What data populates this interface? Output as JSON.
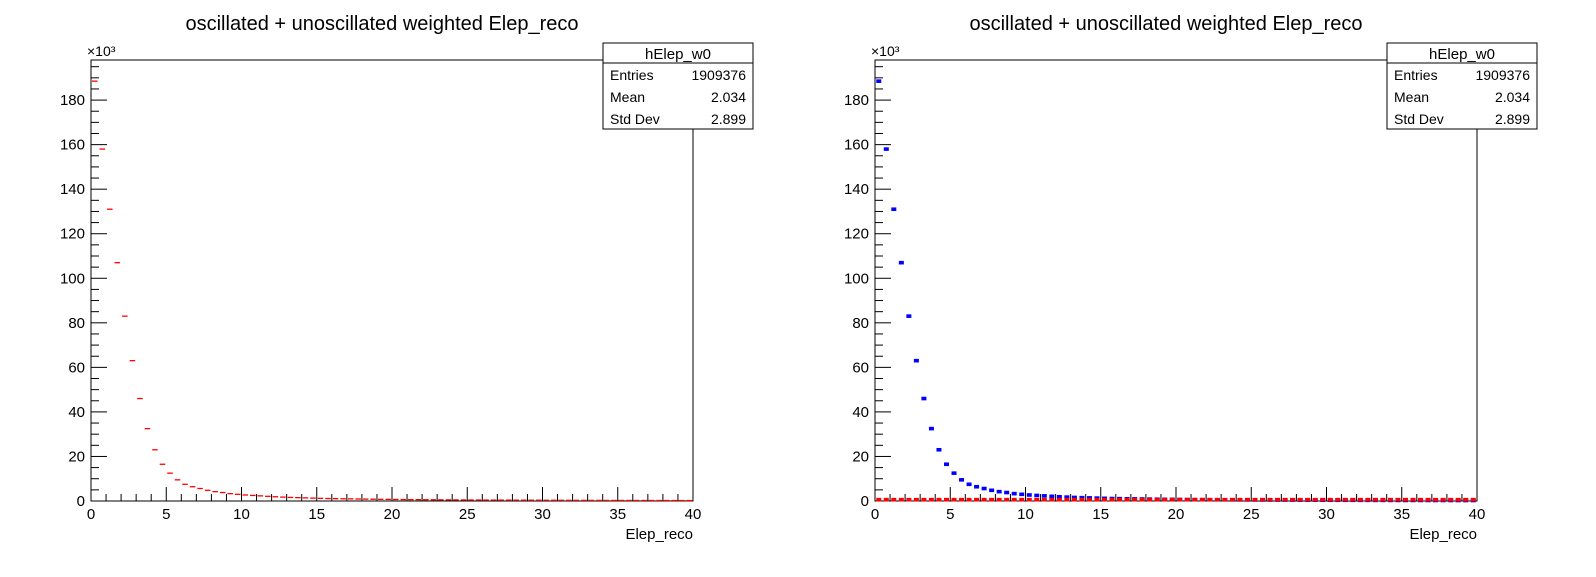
{
  "chart_data": [
    {
      "type": "scatter",
      "title": "oscillated + unoscillated weighted Elep_reco",
      "xlabel": "Elep_reco",
      "ylabel": "",
      "y_multiplier": "×10³",
      "xlim": [
        0,
        40
      ],
      "ylim": [
        0,
        198
      ],
      "x_ticks": [
        "0",
        "5",
        "10",
        "15",
        "20",
        "25",
        "30",
        "35",
        "40"
      ],
      "y_ticks": [
        "0",
        "20",
        "40",
        "60",
        "80",
        "100",
        "120",
        "140",
        "160",
        "180"
      ],
      "stats_box": {
        "name": "hElep_w0",
        "rows": [
          {
            "label": "Entries",
            "value": "1909376"
          },
          {
            "label": "Mean",
            "value": "2.034"
          },
          {
            "label": "Std Dev",
            "value": "2.899"
          }
        ]
      },
      "series": [
        {
          "color": "#ff0000",
          "marker": "hbar",
          "x": [
            0.25,
            0.75,
            1.25,
            1.75,
            2.25,
            2.75,
            3.25,
            3.75,
            4.25,
            4.75,
            5.25,
            5.75,
            6.25,
            6.75,
            7.25,
            7.75,
            8.25,
            8.75,
            9.25,
            9.75,
            10.25,
            10.75,
            11.25,
            11.75,
            12.25,
            12.75,
            13.25,
            13.75,
            14.25,
            14.75,
            15.25,
            15.75,
            16.25,
            16.75,
            17.25,
            17.75,
            18.25,
            18.75,
            19.25,
            19.75,
            20.25,
            20.75,
            21.25,
            21.75,
            22.25,
            22.75,
            23.25,
            23.75,
            24.25,
            24.75,
            25.25,
            25.75,
            26.25,
            26.75,
            27.25,
            27.75,
            28.25,
            28.75,
            29.25,
            29.75,
            30.25,
            30.75,
            31.25,
            31.75,
            32.25,
            32.75,
            33.25,
            33.75,
            34.25,
            34.75,
            35.25,
            35.75,
            36.25,
            36.75,
            37.25,
            37.75,
            38.25,
            38.75,
            39.25,
            39.75
          ],
          "values": [
            188.5,
            158,
            131,
            107,
            83,
            63,
            46,
            32.5,
            23,
            16.5,
            12.5,
            9.5,
            7.5,
            6.4,
            5.6,
            4.8,
            4.2,
            3.8,
            3.3,
            3.0,
            2.7,
            2.5,
            2.3,
            2.1,
            1.9,
            1.75,
            1.6,
            1.5,
            1.4,
            1.3,
            1.2,
            1.1,
            1.05,
            1.0,
            0.95,
            0.9,
            0.85,
            0.8,
            0.75,
            0.72,
            0.68,
            0.65,
            0.62,
            0.6,
            0.57,
            0.55,
            0.53,
            0.51,
            0.49,
            0.47,
            0.45,
            0.44,
            0.42,
            0.41,
            0.4,
            0.39,
            0.38,
            0.37,
            0.36,
            0.35,
            0.34,
            0.33,
            0.32,
            0.31,
            0.3,
            0.29,
            0.28,
            0.28,
            0.27,
            0.26,
            0.25,
            0.25,
            0.24,
            0.24,
            0.23,
            0.23,
            0.22,
            0.22,
            0.21,
            0.21
          ]
        }
      ]
    },
    {
      "type": "scatter",
      "title": "oscillated + unoscillated weighted Elep_reco",
      "xlabel": "Elep_reco",
      "ylabel": "",
      "y_multiplier": "×10³",
      "xlim": [
        0,
        40
      ],
      "ylim": [
        0,
        198
      ],
      "x_ticks": [
        "0",
        "5",
        "10",
        "15",
        "20",
        "25",
        "30",
        "35",
        "40"
      ],
      "y_ticks": [
        "0",
        "20",
        "40",
        "60",
        "80",
        "100",
        "120",
        "140",
        "160",
        "180"
      ],
      "stats_box": {
        "name": "hElep_w0",
        "rows": [
          {
            "label": "Entries",
            "value": "1909376"
          },
          {
            "label": "Mean",
            "value": "2.034"
          },
          {
            "label": "Std Dev",
            "value": "2.899"
          }
        ]
      },
      "series": [
        {
          "color": "#0000ff",
          "marker": "dot",
          "x": [
            0.25,
            0.75,
            1.25,
            1.75,
            2.25,
            2.75,
            3.25,
            3.75,
            4.25,
            4.75,
            5.25,
            5.75,
            6.25,
            6.75,
            7.25,
            7.75,
            8.25,
            8.75,
            9.25,
            9.75,
            10.25,
            10.75,
            11.25,
            11.75,
            12.25,
            12.75,
            13.25,
            13.75,
            14.25,
            14.75,
            15.25,
            15.75,
            16.25,
            16.75,
            17.25,
            17.75,
            18.25,
            18.75,
            19.25,
            19.75,
            20.25,
            20.75,
            21.25,
            21.75,
            22.25,
            22.75,
            23.25,
            23.75,
            24.25,
            24.75,
            25.25,
            25.75,
            26.25,
            26.75,
            27.25,
            27.75,
            28.25,
            28.75,
            29.25,
            29.75,
            30.25,
            30.75,
            31.25,
            31.75,
            32.25,
            32.75,
            33.25,
            33.75,
            34.25,
            34.75,
            35.25,
            35.75,
            36.25,
            36.75,
            37.25,
            37.75,
            38.25,
            38.75,
            39.25,
            39.75
          ],
          "values": [
            188.5,
            158,
            131,
            107,
            83,
            63,
            46,
            32.5,
            23,
            16.5,
            12.5,
            9.5,
            7.5,
            6.4,
            5.6,
            4.8,
            4.2,
            3.8,
            3.3,
            3.0,
            2.7,
            2.5,
            2.3,
            2.1,
            1.9,
            1.75,
            1.6,
            1.5,
            1.4,
            1.3,
            1.2,
            1.1,
            1.05,
            1.0,
            0.95,
            0.9,
            0.85,
            0.8,
            0.75,
            0.72,
            0.68,
            0.65,
            0.62,
            0.6,
            0.57,
            0.55,
            0.53,
            0.51,
            0.49,
            0.47,
            0.45,
            0.44,
            0.42,
            0.41,
            0.4,
            0.39,
            0.38,
            0.37,
            0.36,
            0.35,
            0.34,
            0.33,
            0.32,
            0.31,
            0.3,
            0.29,
            0.28,
            0.28,
            0.27,
            0.26,
            0.25,
            0.25,
            0.24,
            0.24,
            0.23,
            0.23,
            0.22,
            0.22,
            0.21,
            0.21
          ]
        },
        {
          "color": "#ff0000",
          "marker": "dot",
          "x": [
            0.25,
            0.75,
            1.25,
            1.75,
            2.25,
            2.75,
            3.25,
            3.75,
            4.25,
            4.75,
            5.25,
            5.75,
            6.25,
            6.75,
            7.25,
            7.75,
            8.25,
            8.75,
            9.25,
            9.75,
            10.25,
            10.75,
            11.25,
            11.75,
            12.25,
            12.75,
            13.25,
            13.75,
            14.25,
            14.75,
            15.25,
            15.75,
            16.25,
            16.75,
            17.25,
            17.75,
            18.25,
            18.75,
            19.25,
            19.75,
            20.25,
            20.75,
            21.25,
            21.75,
            22.25,
            22.75,
            23.25,
            23.75,
            24.25,
            24.75,
            25.25,
            25.75,
            26.25,
            26.75,
            27.25,
            27.75,
            28.25,
            28.75,
            29.25,
            29.75,
            30.25,
            30.75,
            31.25,
            31.75,
            32.25,
            32.75,
            33.25,
            33.75,
            34.25,
            34.75,
            35.25,
            35.75,
            36.25,
            36.75,
            37.25,
            37.75,
            38.25,
            38.75,
            39.25,
            39.75
          ],
          "values": [
            0.6,
            0.6,
            0.6,
            0.6,
            0.6,
            0.6,
            0.6,
            0.6,
            0.6,
            0.6,
            0.6,
            0.6,
            0.6,
            0.6,
            0.6,
            0.6,
            0.6,
            0.6,
            0.6,
            0.6,
            0.6,
            0.6,
            0.6,
            0.6,
            0.6,
            0.6,
            0.6,
            0.6,
            0.6,
            0.6,
            0.6,
            0.6,
            0.6,
            0.6,
            0.6,
            0.6,
            0.6,
            0.6,
            0.6,
            0.6,
            0.6,
            0.6,
            0.6,
            0.6,
            0.6,
            0.6,
            0.6,
            0.6,
            0.6,
            0.6,
            0.6,
            0.6,
            0.6,
            0.6,
            0.6,
            0.6,
            0.6,
            0.6,
            0.6,
            0.6,
            0.6,
            0.6,
            0.6,
            0.6,
            0.6,
            0.6,
            0.6,
            0.6,
            0.6,
            0.6,
            0.6,
            0.6,
            0.6,
            0.6,
            0.6,
            0.6,
            0.6,
            0.6,
            0.6,
            0.6
          ]
        }
      ]
    }
  ]
}
